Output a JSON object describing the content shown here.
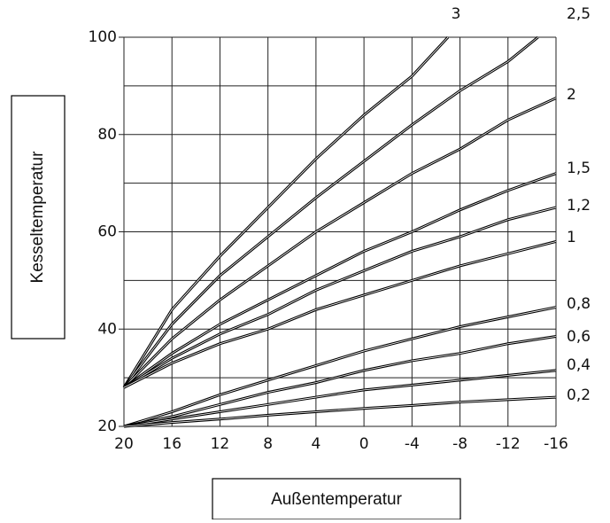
{
  "chart_data": {
    "type": "line",
    "xlabel": "Außentemperatur",
    "ylabel": "Kesseltemperatur",
    "xlim": [
      20,
      -16
    ],
    "ylim": [
      20,
      100
    ],
    "xticks": [
      20,
      16,
      12,
      8,
      4,
      0,
      -4,
      -8,
      -12,
      -16
    ],
    "yticks": [
      20,
      40,
      60,
      80,
      100
    ],
    "ygrid": [
      20,
      30,
      40,
      50,
      60,
      70,
      80,
      90,
      100
    ],
    "grid": true,
    "color": "#000000",
    "series": [
      {
        "name": "3",
        "x": [
          20,
          16,
          12,
          8,
          4,
          0,
          -4,
          -7
        ],
        "values": [
          28,
          44,
          55,
          65,
          75,
          84,
          92,
          100
        ]
      },
      {
        "name": "2,5",
        "x": [
          20,
          16,
          12,
          8,
          4,
          0,
          -4,
          -8,
          -12,
          -14.5
        ],
        "values": [
          28,
          41,
          51,
          59,
          67,
          74.5,
          82,
          89,
          95,
          100
        ]
      },
      {
        "name": "2",
        "x": [
          20,
          16,
          12,
          8,
          4,
          0,
          -4,
          -8,
          -12,
          -16
        ],
        "values": [
          28,
          38,
          46,
          53,
          60,
          66,
          72,
          77,
          83,
          87.5
        ]
      },
      {
        "name": "1,5",
        "x": [
          20,
          16,
          12,
          8,
          4,
          0,
          -4,
          -8,
          -12,
          -16
        ],
        "values": [
          28,
          35,
          41,
          46,
          51,
          56,
          60,
          64.5,
          68.5,
          72
        ]
      },
      {
        "name": "1,2",
        "x": [
          20,
          16,
          12,
          8,
          4,
          0,
          -4,
          -8,
          -12,
          -16
        ],
        "values": [
          28,
          34,
          39,
          43,
          48,
          52,
          56,
          59,
          62.5,
          65
        ]
      },
      {
        "name": "1",
        "x": [
          20,
          16,
          12,
          8,
          4,
          0,
          -4,
          -8,
          -12,
          -16
        ],
        "values": [
          28,
          33,
          37,
          40,
          44,
          47,
          50,
          53,
          55.5,
          58
        ]
      },
      {
        "name": "0,8",
        "x": [
          20,
          16,
          12,
          8,
          4,
          0,
          -4,
          -8,
          -12,
          -16
        ],
        "values": [
          20,
          23,
          26.5,
          29.5,
          32.5,
          35.5,
          38,
          40.5,
          42.5,
          44.5
        ]
      },
      {
        "name": "0,6",
        "x": [
          20,
          16,
          12,
          8,
          4,
          0,
          -4,
          -8,
          -12,
          -16
        ],
        "values": [
          20,
          22,
          24.5,
          27,
          29,
          31.5,
          33.5,
          35,
          37,
          38.5
        ]
      },
      {
        "name": "0,4",
        "x": [
          20,
          16,
          12,
          8,
          4,
          0,
          -4,
          -8,
          -12,
          -16
        ],
        "values": [
          20,
          21.5,
          23,
          24.5,
          26,
          27.5,
          28.5,
          29.5,
          30.5,
          31.5
        ]
      },
      {
        "name": "0,2",
        "x": [
          20,
          16,
          12,
          8,
          4,
          0,
          -4,
          -8,
          -12,
          -16
        ],
        "values": [
          20,
          20.8,
          21.5,
          22.3,
          23,
          23.7,
          24.3,
          25,
          25.5,
          26
        ]
      }
    ]
  }
}
